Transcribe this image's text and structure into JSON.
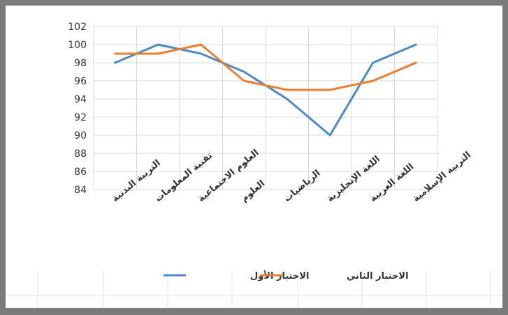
{
  "chart_data": {
    "type": "line",
    "title": "",
    "xlabel": "",
    "ylabel": "",
    "categories": [
      "التربية البدنية",
      "تقنية المعلومات",
      "العلوم الاجتماعية",
      "العلوم",
      "الرياضيات",
      "اللغة الإنجليزية",
      "اللغة العربية",
      "التربية الإسلامية"
    ],
    "series": [
      {
        "name": "الاختبار الأول",
        "color": "#4a8ac6",
        "values": [
          98,
          100,
          99,
          97,
          94,
          90,
          98,
          100
        ]
      },
      {
        "name": "الاختبار الثاني",
        "color": "#ec7d31",
        "values": [
          99,
          99,
          100,
          96,
          95,
          95,
          96,
          98
        ]
      }
    ],
    "ylim": [
      84,
      102
    ],
    "yticks": [
      84,
      86,
      88,
      90,
      92,
      94,
      96,
      98,
      100,
      102
    ],
    "grid": true,
    "legend_position": "bottom"
  }
}
